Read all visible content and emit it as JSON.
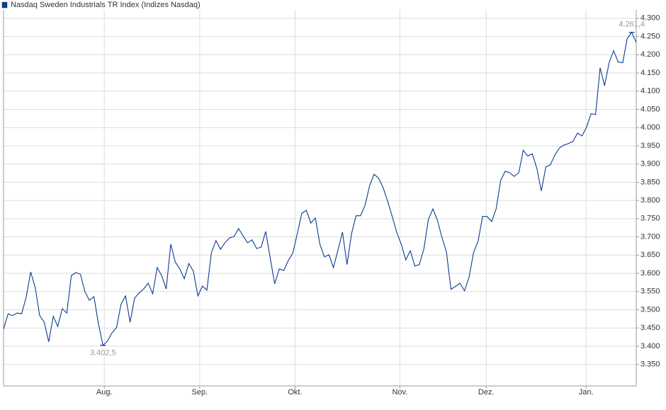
{
  "chart_data": {
    "type": "line",
    "grid": true,
    "series": [
      {
        "name": "Nasdaq Sweden Industrials TR Index  (Indizes Nasdaq)",
        "color": "#0b3d91",
        "values": [
          3447,
          3489,
          3484,
          3491,
          3489,
          3534,
          3604,
          3561,
          3484,
          3466,
          3412,
          3482,
          3454,
          3503,
          3491,
          3594,
          3602,
          3598,
          3550,
          3526,
          3536,
          3462,
          3402.5,
          3414,
          3437,
          3451,
          3515,
          3538,
          3466,
          3532,
          3546,
          3557,
          3573,
          3544,
          3616,
          3593,
          3557,
          3680,
          3631,
          3612,
          3585,
          3627,
          3606,
          3538,
          3565,
          3554,
          3657,
          3690,
          3666,
          3684,
          3697,
          3701,
          3723,
          3703,
          3684,
          3692,
          3668,
          3672,
          3715,
          3643,
          3571,
          3612,
          3608,
          3635,
          3655,
          3709,
          3765,
          3773,
          3738,
          3752,
          3680,
          3645,
          3651,
          3616,
          3664,
          3713,
          3624,
          3709,
          3758,
          3758,
          3787,
          3841,
          3872,
          3861,
          3835,
          3797,
          3756,
          3713,
          3680,
          3637,
          3662,
          3620,
          3624,
          3666,
          3748,
          3777,
          3746,
          3699,
          3659,
          3556,
          3564,
          3573,
          3552,
          3589,
          3657,
          3688,
          3756,
          3756,
          3742,
          3777,
          3855,
          3880,
          3876,
          3866,
          3876,
          3938,
          3922,
          3928,
          3888,
          3826,
          3892,
          3898,
          3925,
          3944,
          3952,
          3956,
          3962,
          3985,
          3977,
          4001,
          4038,
          4036,
          4164,
          4115,
          4178,
          4211,
          4180,
          4178,
          4244,
          4261.4,
          4234
        ],
        "value_labels": [
          null,
          null,
          null,
          null,
          null,
          null,
          null,
          null,
          null,
          null,
          null,
          null,
          null,
          null,
          null,
          null,
          null,
          null,
          null,
          null,
          null,
          null,
          "3.402,5",
          null,
          null,
          null,
          null,
          null,
          null,
          null,
          null,
          null,
          null,
          null,
          null,
          null,
          null,
          null,
          null,
          null,
          null,
          null,
          null,
          null,
          null,
          null,
          null,
          null,
          null,
          null,
          null,
          null,
          null,
          null,
          null,
          null,
          null,
          null,
          null,
          null,
          null,
          null,
          null,
          null,
          null,
          null,
          null,
          null,
          null,
          null,
          null,
          null,
          null,
          null,
          null,
          null,
          null,
          null,
          null,
          null,
          null,
          null,
          null,
          null,
          null,
          null,
          null,
          null,
          null,
          null,
          null,
          null,
          null,
          null,
          null,
          null,
          null,
          null,
          null,
          null,
          null,
          null,
          null,
          null,
          null,
          null,
          null,
          null,
          null,
          null,
          null,
          null,
          null,
          null,
          null,
          null,
          null,
          null,
          null,
          null,
          null,
          null,
          null,
          null,
          null,
          null,
          null,
          null,
          null,
          null,
          null,
          null,
          null,
          null,
          null,
          null,
          null,
          null,
          null,
          "4.261,4",
          null
        ]
      }
    ],
    "xlim": [
      0,
      140
    ],
    "xticks": [
      {
        "value": 22.3,
        "label": "Aug."
      },
      {
        "value": 43.4,
        "label": "Sep."
      },
      {
        "value": 64.5,
        "label": "Okt."
      },
      {
        "value": 87.7,
        "label": "Nov."
      },
      {
        "value": 106.8,
        "label": "Dez."
      },
      {
        "value": 128.9,
        "label": "Jan."
      }
    ],
    "ylim": [
      3291,
      4323
    ],
    "yticks": [
      {
        "value": 3350,
        "label": "3.350"
      },
      {
        "value": 3400,
        "label": "3.400"
      },
      {
        "value": 3450,
        "label": "3.450"
      },
      {
        "value": 3500,
        "label": "3.500"
      },
      {
        "value": 3550,
        "label": "3.550"
      },
      {
        "value": 3600,
        "label": "3.600"
      },
      {
        "value": 3650,
        "label": "3.650"
      },
      {
        "value": 3700,
        "label": "3.700"
      },
      {
        "value": 3750,
        "label": "3.750"
      },
      {
        "value": 3800,
        "label": "3.800"
      },
      {
        "value": 3850,
        "label": "3.850"
      },
      {
        "value": 3900,
        "label": "3.900"
      },
      {
        "value": 3950,
        "label": "3.950"
      },
      {
        "value": 4000,
        "label": "4.000"
      },
      {
        "value": 4050,
        "label": "4.050"
      },
      {
        "value": 4100,
        "label": "4.100"
      },
      {
        "value": 4150,
        "label": "4.150"
      },
      {
        "value": 4200,
        "label": "4.200"
      },
      {
        "value": 4250,
        "label": "4.250"
      },
      {
        "value": 4300,
        "label": "4.300"
      }
    ]
  }
}
